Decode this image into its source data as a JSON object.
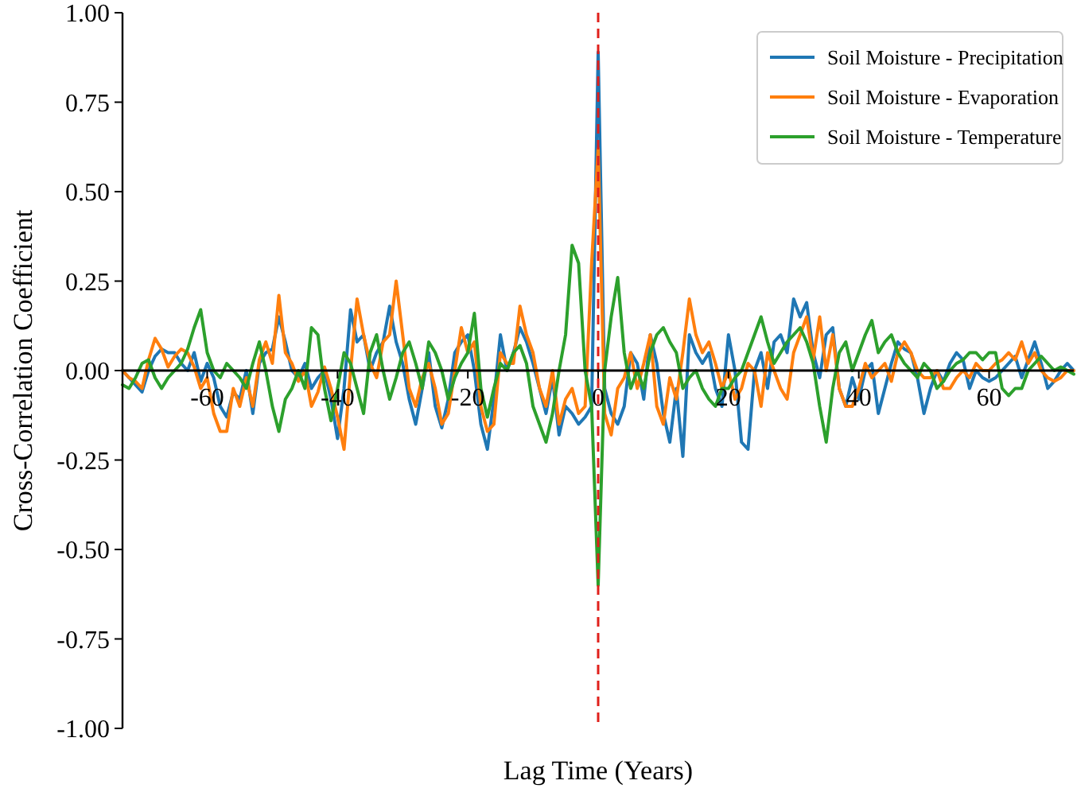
{
  "chart_data": {
    "type": "line",
    "xlabel": "Lag Time (Years)",
    "ylabel": "Cross-Correlation Coefficient",
    "x": [
      -73,
      -72,
      -71,
      -70,
      -69,
      -68,
      -67,
      -66,
      -65,
      -64,
      -63,
      -62,
      -61,
      -60,
      -59,
      -58,
      -57,
      -56,
      -55,
      -54,
      -53,
      -52,
      -51,
      -50,
      -49,
      -48,
      -47,
      -46,
      -45,
      -44,
      -43,
      -42,
      -41,
      -40,
      -39,
      -38,
      -37,
      -36,
      -35,
      -34,
      -33,
      -32,
      -31,
      -30,
      -29,
      -28,
      -27,
      -26,
      -25,
      -24,
      -23,
      -22,
      -21,
      -20,
      -19,
      -18,
      -17,
      -16,
      -15,
      -14,
      -13,
      -12,
      -11,
      -10,
      -9,
      -8,
      -7,
      -6,
      -5,
      -4,
      -3,
      -2,
      -1,
      0,
      1,
      2,
      3,
      4,
      5,
      6,
      7,
      8,
      9,
      10,
      11,
      12,
      13,
      14,
      15,
      16,
      17,
      18,
      19,
      20,
      21,
      22,
      23,
      24,
      25,
      26,
      27,
      28,
      29,
      30,
      31,
      32,
      33,
      34,
      35,
      36,
      37,
      38,
      39,
      40,
      41,
      42,
      43,
      44,
      45,
      46,
      47,
      48,
      49,
      50,
      51,
      52,
      53,
      54,
      55,
      56,
      57,
      58,
      59,
      60,
      61,
      62,
      63,
      64,
      65,
      66,
      67,
      68,
      69,
      70,
      71,
      72,
      73
    ],
    "series": [
      {
        "name": "Soil Moisture - Precipitation",
        "color": "#1f77b4",
        "values": [
          0.0,
          -0.02,
          -0.04,
          -0.06,
          0.0,
          0.04,
          0.06,
          0.05,
          0.05,
          0.02,
          0.0,
          0.05,
          -0.03,
          0.02,
          -0.02,
          -0.1,
          -0.13,
          -0.06,
          -0.08,
          0.0,
          -0.12,
          0.02,
          0.05,
          0.06,
          0.15,
          0.08,
          0.0,
          -0.02,
          0.02,
          -0.05,
          -0.02,
          0.0,
          -0.08,
          -0.19,
          -0.05,
          0.17,
          0.08,
          0.1,
          0.0,
          0.05,
          0.08,
          0.18,
          0.08,
          0.02,
          -0.08,
          -0.15,
          -0.05,
          0.05,
          -0.1,
          -0.16,
          -0.08,
          0.05,
          0.08,
          0.1,
          0.0,
          -0.15,
          -0.22,
          -0.08,
          0.1,
          0.0,
          0.05,
          0.12,
          0.08,
          0.02,
          -0.05,
          -0.12,
          -0.02,
          -0.18,
          -0.1,
          -0.12,
          -0.15,
          -0.13,
          -0.1,
          0.89,
          -0.05,
          -0.12,
          -0.15,
          -0.1,
          0.05,
          0.02,
          -0.08,
          0.1,
          0.02,
          -0.12,
          -0.2,
          -0.05,
          -0.24,
          0.1,
          0.05,
          0.02,
          0.05,
          -0.05,
          -0.1,
          0.1,
          0.0,
          -0.2,
          -0.22,
          0.0,
          0.05,
          -0.05,
          0.08,
          0.1,
          0.05,
          0.2,
          0.15,
          0.19,
          0.05,
          -0.02,
          0.1,
          0.12,
          -0.05,
          -0.1,
          -0.02,
          -0.08,
          0.0,
          0.02,
          -0.12,
          -0.05,
          0.02,
          0.08,
          0.06,
          0.05,
          -0.02,
          -0.12,
          -0.05,
          0.0,
          -0.03,
          0.02,
          0.05,
          0.03,
          -0.05,
          0.0,
          -0.02,
          -0.03,
          -0.02,
          0.0,
          0.02,
          0.04,
          -0.02,
          0.03,
          0.08,
          0.02,
          -0.05,
          -0.03,
          0.0,
          0.02,
          0.0
        ]
      },
      {
        "name": "Soil Moisture - Evaporation",
        "color": "#ff7f0e",
        "values": [
          0,
          -0.02,
          -0.03,
          -0.05,
          0.03,
          0.09,
          0.06,
          0.01,
          0.04,
          0.06,
          0.05,
          0.01,
          -0.05,
          -0.02,
          -0.12,
          -0.17,
          -0.17,
          -0.05,
          -0.1,
          -0.02,
          -0.1,
          0.03,
          0.08,
          0.02,
          0.21,
          0.05,
          0.02,
          -0.03,
          0.0,
          -0.1,
          -0.06,
          0.01,
          -0.05,
          -0.13,
          -0.22,
          0.0,
          0.2,
          0.1,
          0.02,
          -0.02,
          0.08,
          0.1,
          0.25,
          0.1,
          -0.05,
          -0.1,
          -0.02,
          0.02,
          -0.05,
          -0.15,
          -0.12,
          0.0,
          0.12,
          0.05,
          0.08,
          -0.1,
          -0.17,
          -0.15,
          0.05,
          0.02,
          0.02,
          0.18,
          0.1,
          0.05,
          -0.05,
          -0.1,
          0.0,
          -0.15,
          -0.08,
          -0.05,
          -0.12,
          -0.1,
          0.3,
          0.62,
          -0.12,
          -0.18,
          -0.05,
          -0.02,
          0.05,
          -0.05,
          0.02,
          0.1,
          -0.1,
          -0.15,
          -0.02,
          -0.08,
          0.05,
          0.2,
          0.1,
          0.05,
          0.08,
          0.02,
          -0.05,
          0.0,
          -0.08,
          -0.05,
          0.02,
          0.0,
          -0.1,
          0.05,
          0.0,
          -0.05,
          -0.08,
          0.05,
          0.1,
          0.15,
          0.03,
          0.15,
          0.0,
          0.1,
          -0.05,
          -0.1,
          -0.1,
          -0.05,
          0.02,
          -0.02,
          0.0,
          0.02,
          -0.03,
          0.05,
          0.08,
          0.05,
          0.0,
          -0.02,
          -0.02,
          0.0,
          -0.05,
          -0.05,
          -0.02,
          0.0,
          -0.02,
          0.02,
          0.0,
          0.0,
          0.02,
          0.03,
          0.05,
          0.03,
          0.08,
          0.02,
          0.05,
          0.0,
          -0.02,
          -0.03,
          -0.02,
          0.0,
          0.0
        ]
      },
      {
        "name": "Soil Moisture - Temperature",
        "color": "#2ca02c",
        "values": [
          -0.04,
          -0.05,
          -0.02,
          0.02,
          0.03,
          -0.02,
          -0.05,
          -0.02,
          0.0,
          0.02,
          0.06,
          0.12,
          0.17,
          0.05,
          0.0,
          -0.02,
          0.02,
          0.0,
          -0.02,
          -0.05,
          0.02,
          0.08,
          0.0,
          -0.1,
          -0.17,
          -0.08,
          -0.05,
          0.0,
          -0.05,
          0.12,
          0.1,
          -0.05,
          -0.14,
          -0.05,
          0.05,
          0.02,
          -0.05,
          -0.12,
          0.05,
          0.1,
          0.0,
          -0.08,
          -0.02,
          0.05,
          0.08,
          0.02,
          -0.05,
          0.08,
          0.05,
          0.0,
          -0.08,
          -0.02,
          0.02,
          0.05,
          0.16,
          -0.05,
          -0.13,
          -0.05,
          0.02,
          0.0,
          0.05,
          0.07,
          0.02,
          -0.1,
          -0.15,
          -0.2,
          -0.12,
          0.0,
          0.1,
          0.35,
          0.3,
          0.0,
          -0.1,
          -0.6,
          0.0,
          0.15,
          0.26,
          0.05,
          -0.05,
          0.0,
          -0.05,
          0.05,
          0.1,
          0.12,
          0.08,
          0.05,
          -0.05,
          -0.02,
          0.0,
          -0.05,
          -0.08,
          -0.1,
          -0.05,
          -0.05,
          -0.02,
          0.0,
          0.05,
          0.1,
          0.15,
          0.08,
          0.02,
          0.05,
          0.08,
          0.1,
          0.12,
          0.08,
          0.02,
          -0.1,
          -0.2,
          -0.05,
          0.05,
          0.08,
          0.0,
          0.05,
          0.1,
          0.14,
          0.05,
          0.08,
          0.1,
          0.05,
          0.02,
          0.0,
          -0.02,
          0.02,
          0.0,
          -0.05,
          -0.03,
          0.0,
          0.02,
          0.03,
          0.05,
          0.05,
          0.03,
          0.05,
          0.05,
          -0.05,
          -0.07,
          -0.05,
          -0.05,
          0.0,
          0.02,
          0.04,
          0.02,
          0.0,
          0.01,
          0.0,
          -0.01
        ]
      }
    ],
    "xlim": [
      -73,
      73
    ],
    "xticks": [
      -60,
      -40,
      -20,
      0,
      20,
      40,
      60
    ],
    "ylim": [
      -1,
      1
    ],
    "yticks": [
      {
        "value": -1,
        "label": "-1.00"
      },
      {
        "value": -0.75,
        "label": "-0.75"
      },
      {
        "value": -0.5,
        "label": "-0.50"
      },
      {
        "value": -0.25,
        "label": "-0.25"
      },
      {
        "value": 0,
        "label": "0.00"
      },
      {
        "value": 0.25,
        "label": "0.25"
      },
      {
        "value": 0.5,
        "label": "0.50"
      },
      {
        "value": 0.75,
        "label": "0.75"
      },
      {
        "value": 1,
        "label": "1.00"
      }
    ],
    "ref_lines": [
      {
        "axis": "x",
        "value": 0,
        "color": "#e0201b",
        "line_style": "dashed"
      }
    ],
    "legend": "top right",
    "grid": false,
    "line_style": "solid",
    "marker": "none"
  }
}
